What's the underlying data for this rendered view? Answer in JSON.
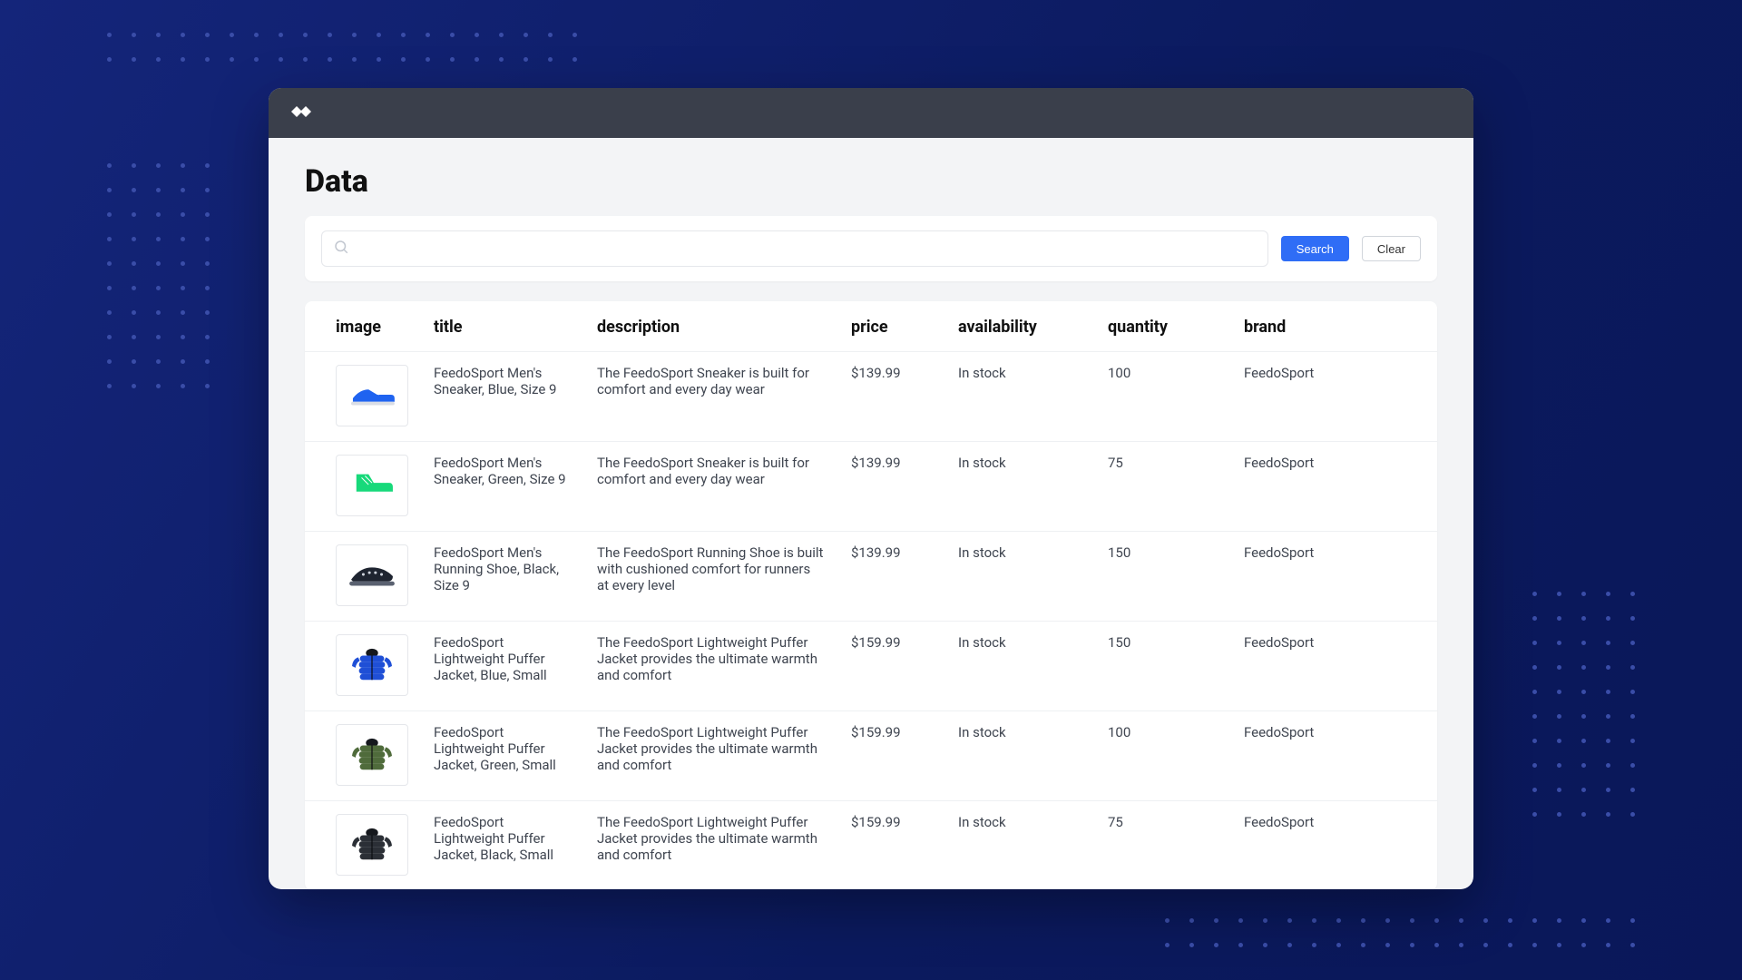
{
  "page": {
    "title": "Data"
  },
  "search": {
    "placeholder": "",
    "search_label": "Search",
    "clear_label": "Clear"
  },
  "colors": {
    "bg_gradient_from": "#14257a",
    "bg_gradient_to": "#0a1759",
    "dot": "#3a4da8",
    "window_bg": "#f3f4f6",
    "header_bg": "#3a3f4b",
    "primary_btn": "#2f6df6",
    "border": "#e5e7eb",
    "row_border": "#eef0f3",
    "text": "#3f4550",
    "heading": "#111111"
  },
  "table": {
    "columns": [
      "image",
      "title",
      "description",
      "price",
      "availability",
      "quantity",
      "brand"
    ],
    "rows": [
      {
        "image_kind": "sneaker-low",
        "image_color": "#1f63f0",
        "title": "FeedoSport Men's Sneaker, Blue, Size 9",
        "description": "The FeedoSport Sneaker is built for comfort and every day wear",
        "price": "$139.99",
        "availability": "In stock",
        "quantity": "100",
        "brand": "FeedoSport"
      },
      {
        "image_kind": "sneaker-high",
        "image_color": "#17d97a",
        "title": "FeedoSport Men's Sneaker, Green, Size 9",
        "description": "The FeedoSport Sneaker is built for comfort and every day wear",
        "price": "$139.99",
        "availability": "In stock",
        "quantity": "75",
        "brand": "FeedoSport"
      },
      {
        "image_kind": "running",
        "image_color": "#1e2430",
        "title": "FeedoSport Men's Running Shoe, Black, Size 9",
        "description": "The FeedoSport Running Shoe is built with cushioned comfort for runners at every level",
        "price": "$139.99",
        "availability": "In stock",
        "quantity": "150",
        "brand": "FeedoSport"
      },
      {
        "image_kind": "puffer",
        "image_color": "#1f4fd6",
        "title": "FeedoSport Lightweight Puffer Jacket, Blue, Small",
        "description": "The FeedoSport Lightweight Puffer Jacket provides the ultimate warmth and comfort",
        "price": "$159.99",
        "availability": "In stock",
        "quantity": "150",
        "brand": "FeedoSport"
      },
      {
        "image_kind": "puffer",
        "image_color": "#4f6b3b",
        "title": "FeedoSport Lightweight Puffer Jacket, Green, Small",
        "description": "The FeedoSport Lightweight Puffer Jacket provides the ultimate warmth and comfort",
        "price": "$159.99",
        "availability": "In stock",
        "quantity": "100",
        "brand": "FeedoSport"
      },
      {
        "image_kind": "puffer",
        "image_color": "#2b2f36",
        "title": "FeedoSport Lightweight Puffer Jacket, Black, Small",
        "description": "The FeedoSport Lightweight Puffer Jacket provides the ultimate warmth and comfort",
        "price": "$159.99",
        "availability": "In stock",
        "quantity": "75",
        "brand": "FeedoSport"
      }
    ]
  }
}
